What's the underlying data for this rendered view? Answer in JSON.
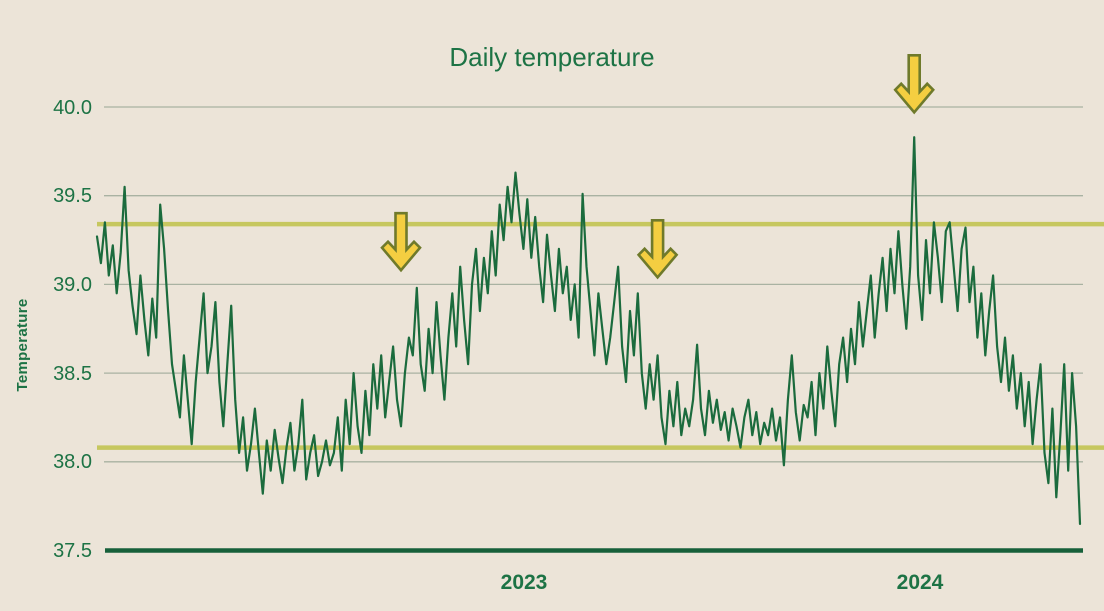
{
  "colors": {
    "bg": "#ece4d8",
    "text": "#1d7345",
    "line": "#1b6b3d",
    "grid": "#a9b2a2",
    "threshold": "#c6c75f",
    "arrow-fill": "#f4ce41",
    "arrow-stroke": "#6f7a2b",
    "baseline": "#17603a"
  },
  "chart_data": {
    "type": "line",
    "title": "Daily temperature",
    "ylabel": "Temperature",
    "xlabel": "",
    "ylim": [
      37.5,
      40.0
    ],
    "ytick_labels": [
      "37.5",
      "38.0",
      "38.5",
      "39.0",
      "39.5",
      "40.0"
    ],
    "xtick_labels": [
      "2023",
      "2024"
    ],
    "grid": "horizontal",
    "legend": "none",
    "threshold_lines": [
      39.34,
      38.08
    ],
    "annotations": [
      {
        "type": "down-arrow",
        "index": 77,
        "tip_value": 39.08
      },
      {
        "type": "down-arrow",
        "index": 142,
        "tip_value": 39.04
      },
      {
        "type": "down-arrow",
        "index": 207,
        "tip_value": 39.97
      }
    ],
    "series": [
      {
        "name": "daily temperature",
        "values": [
          39.27,
          39.12,
          39.35,
          39.05,
          39.22,
          38.95,
          39.18,
          39.55,
          39.08,
          38.88,
          38.72,
          39.05,
          38.8,
          38.6,
          38.92,
          38.7,
          39.45,
          39.2,
          38.85,
          38.55,
          38.4,
          38.25,
          38.6,
          38.35,
          38.1,
          38.45,
          38.7,
          38.95,
          38.5,
          38.65,
          38.9,
          38.45,
          38.2,
          38.55,
          38.88,
          38.35,
          38.05,
          38.25,
          37.95,
          38.1,
          38.3,
          38.05,
          37.82,
          38.12,
          37.95,
          38.18,
          38.02,
          37.88,
          38.08,
          38.22,
          37.95,
          38.1,
          38.35,
          37.9,
          38.05,
          38.15,
          37.92,
          38.0,
          38.12,
          37.98,
          38.05,
          38.25,
          37.95,
          38.35,
          38.1,
          38.5,
          38.2,
          38.05,
          38.4,
          38.15,
          38.55,
          38.3,
          38.6,
          38.25,
          38.45,
          38.65,
          38.35,
          38.2,
          38.5,
          38.7,
          38.6,
          38.98,
          38.55,
          38.4,
          38.75,
          38.5,
          38.9,
          38.6,
          38.35,
          38.7,
          38.95,
          38.65,
          39.1,
          38.8,
          38.55,
          39.0,
          39.2,
          38.85,
          39.15,
          38.95,
          39.3,
          39.05,
          39.45,
          39.25,
          39.55,
          39.35,
          39.63,
          39.4,
          39.2,
          39.48,
          39.15,
          39.38,
          39.1,
          38.9,
          39.28,
          39.05,
          38.85,
          39.2,
          38.95,
          39.1,
          38.8,
          39.0,
          38.7,
          39.51,
          39.1,
          38.85,
          38.6,
          38.95,
          38.75,
          38.55,
          38.7,
          38.9,
          39.1,
          38.65,
          38.45,
          38.85,
          38.6,
          38.95,
          38.5,
          38.3,
          38.55,
          38.35,
          38.6,
          38.25,
          38.1,
          38.4,
          38.2,
          38.45,
          38.15,
          38.3,
          38.2,
          38.35,
          38.66,
          38.3,
          38.15,
          38.4,
          38.22,
          38.35,
          38.18,
          38.28,
          38.12,
          38.3,
          38.2,
          38.08,
          38.25,
          38.35,
          38.15,
          38.28,
          38.1,
          38.22,
          38.15,
          38.3,
          38.12,
          38.25,
          37.98,
          38.35,
          38.6,
          38.28,
          38.12,
          38.32,
          38.25,
          38.45,
          38.15,
          38.5,
          38.3,
          38.65,
          38.4,
          38.2,
          38.55,
          38.7,
          38.45,
          38.75,
          38.55,
          38.9,
          38.65,
          38.85,
          39.05,
          38.7,
          38.95,
          39.15,
          38.85,
          39.2,
          38.95,
          39.3,
          39.0,
          38.75,
          39.1,
          39.83,
          39.05,
          38.8,
          39.25,
          38.95,
          39.35,
          39.15,
          38.9,
          39.3,
          39.35,
          39.1,
          38.85,
          39.2,
          39.32,
          38.9,
          39.1,
          38.7,
          38.95,
          38.6,
          38.85,
          39.05,
          38.65,
          38.45,
          38.7,
          38.4,
          38.6,
          38.3,
          38.5,
          38.2,
          38.45,
          38.1,
          38.35,
          38.55,
          38.05,
          37.88,
          38.3,
          37.8,
          38.15,
          38.55,
          37.95,
          38.5,
          38.2,
          37.65
        ]
      }
    ]
  }
}
